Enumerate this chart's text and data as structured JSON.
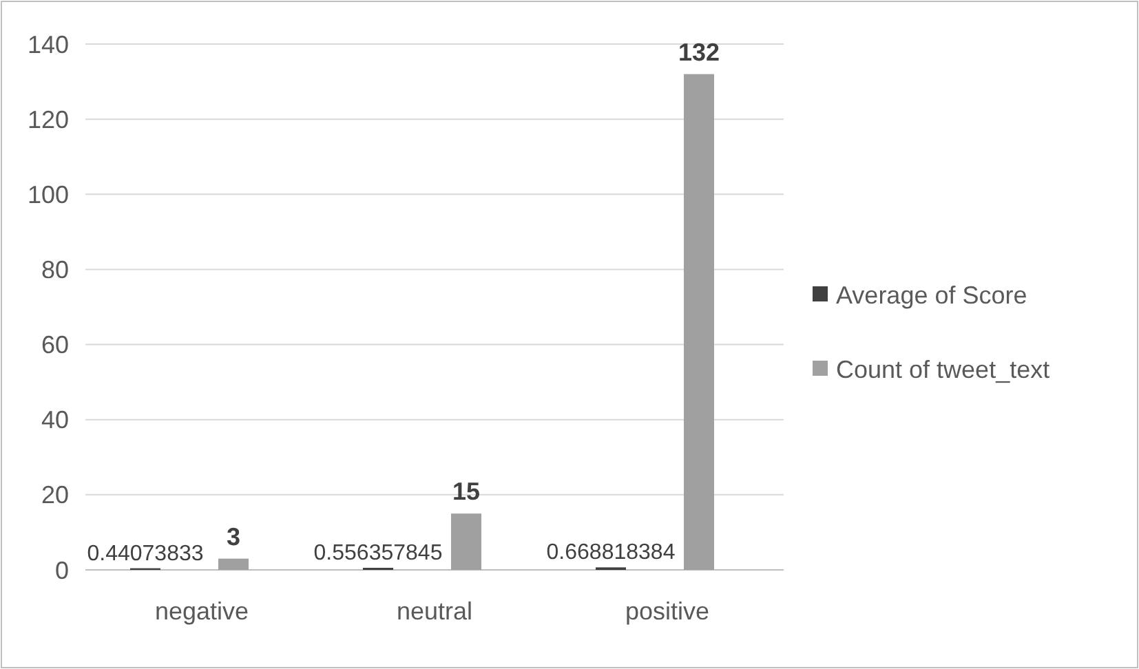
{
  "chart_data": {
    "type": "bar",
    "categories": [
      "negative",
      "neutral",
      "positive"
    ],
    "series": [
      {
        "name": "Average of Score",
        "color": "#404040",
        "values": [
          0.44073833,
          0.556357845,
          0.668818384
        ]
      },
      {
        "name": "Count of tweet_text",
        "color": "#a0a0a0",
        "values": [
          3,
          15,
          132
        ]
      }
    ],
    "ylim": [
      0,
      140
    ],
    "yticks": [
      0,
      20,
      40,
      60,
      80,
      100,
      120,
      140
    ],
    "grid": "y",
    "legend": "right",
    "data_labels": true
  }
}
